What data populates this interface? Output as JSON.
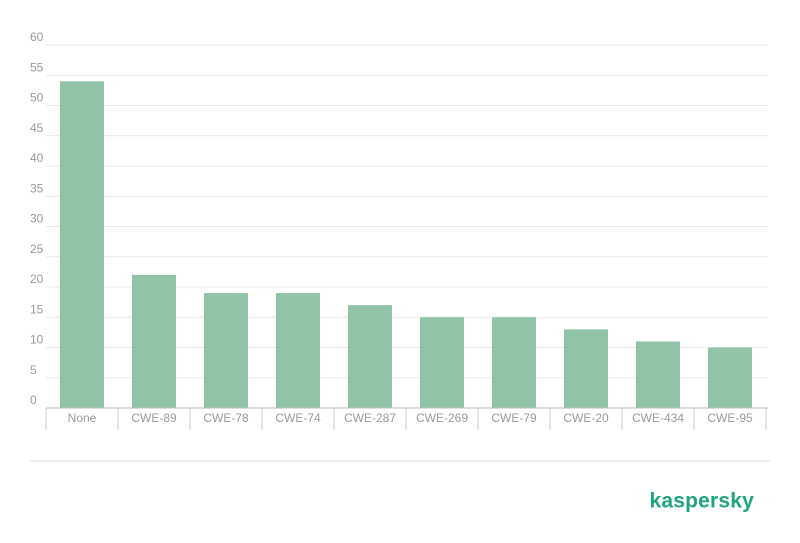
{
  "chart_data": {
    "type": "bar",
    "categories": [
      "None",
      "CWE-89",
      "CWE-78",
      "CWE-74",
      "CWE-287",
      "CWE-269",
      "CWE-79",
      "CWE-20",
      "CWE-434",
      "CWE-95"
    ],
    "values": [
      54,
      22,
      19,
      19,
      17,
      15,
      15,
      13,
      11,
      10
    ],
    "color": "#91c4a7",
    "ylim": [
      0,
      60
    ],
    "yticks": [
      0,
      5,
      10,
      15,
      20,
      25,
      30,
      35,
      40,
      45,
      50,
      55,
      60
    ],
    "grid": true
  },
  "logo": "kaspersky"
}
